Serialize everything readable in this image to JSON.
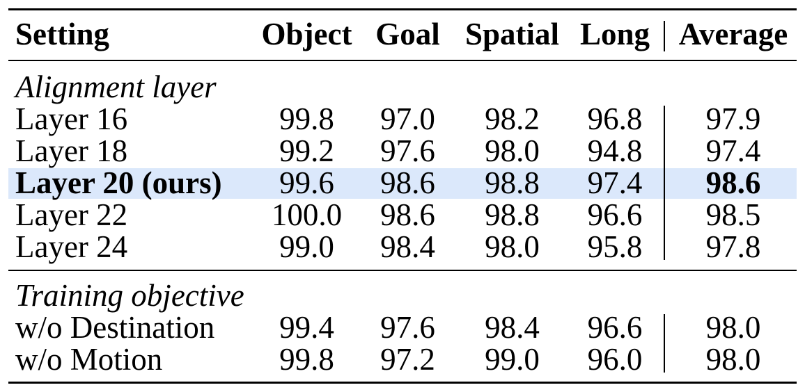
{
  "table": {
    "headers": [
      "Setting",
      "Object",
      "Goal",
      "Spatial",
      "Long",
      "Average"
    ],
    "sections": [
      {
        "title": "Alignment layer",
        "rows": [
          {
            "setting": "Layer 16",
            "values": [
              "99.8",
              "97.0",
              "98.2",
              "96.8",
              "97.9"
            ],
            "highlight": false
          },
          {
            "setting": "Layer 18",
            "values": [
              "99.2",
              "97.6",
              "98.0",
              "94.8",
              "97.4"
            ],
            "highlight": false
          },
          {
            "setting": "Layer 20 (ours)",
            "values": [
              "99.6",
              "98.6",
              "98.8",
              "97.4",
              "98.6"
            ],
            "highlight": true
          },
          {
            "setting": "Layer 22",
            "values": [
              "100.0",
              "98.6",
              "98.8",
              "96.6",
              "98.5"
            ],
            "highlight": false
          },
          {
            "setting": "Layer 24",
            "values": [
              "99.0",
              "98.4",
              "98.0",
              "95.8",
              "97.8"
            ],
            "highlight": false
          }
        ]
      },
      {
        "title": "Training objective",
        "rows": [
          {
            "setting": "w/o Destination",
            "values": [
              "99.4",
              "97.6",
              "98.4",
              "96.6",
              "98.0"
            ],
            "highlight": false
          },
          {
            "setting": "w/o Motion",
            "values": [
              "99.8",
              "97.2",
              "99.0",
              "96.0",
              "98.0"
            ],
            "highlight": false
          }
        ]
      }
    ],
    "colors": {
      "highlight": "#dbe8fb",
      "text": "#000000"
    }
  }
}
